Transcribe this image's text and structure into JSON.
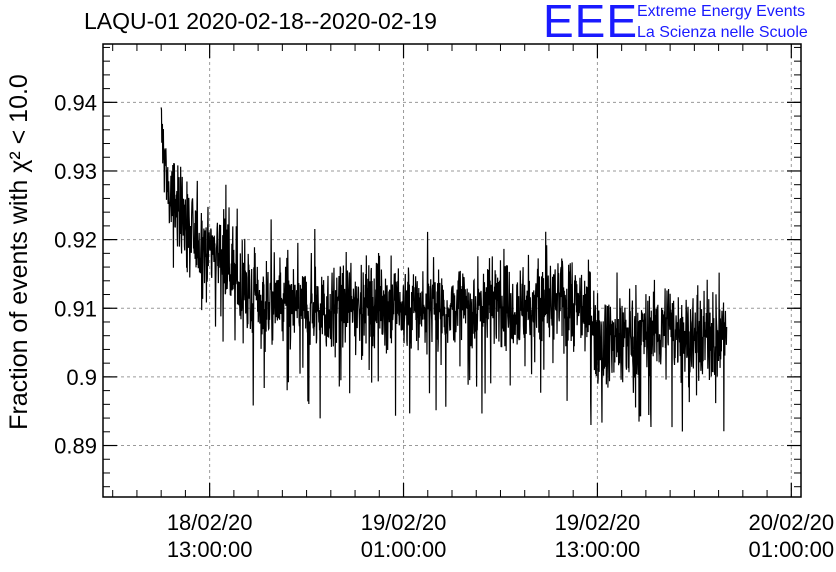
{
  "chart_data": {
    "type": "line",
    "title": "LAQU-01 2020-02-18--2020-02-19",
    "ylabel": "Fraction of events with χ² < 10.0",
    "xlabel": "",
    "ylim": [
      0.8825,
      0.9485
    ],
    "y_ticks": [
      "0.89",
      "0.9",
      "0.91",
      "0.92",
      "0.93",
      "0.94"
    ],
    "x_ticks": [
      {
        "date": "18/02/20",
        "time": "13:00:00"
      },
      {
        "date": "19/02/20",
        "time": "01:00:00"
      },
      {
        "date": "19/02/20",
        "time": "13:00:00"
      },
      {
        "date": "20/02/20",
        "time": "01:00:00"
      }
    ],
    "xlim_hours_from_first_tick": [
      -6.6,
      36.6
    ],
    "grid": true,
    "line_color": "#000000",
    "series": [
      {
        "x_hours": [
          -3,
          -2.5,
          -2,
          -1,
          0,
          1,
          2,
          3,
          4,
          6,
          8,
          10,
          12,
          14,
          16,
          18,
          20,
          22,
          23.5,
          24,
          25,
          26,
          28,
          30,
          31,
          32
        ],
        "values": [
          0.936,
          0.926,
          0.925,
          0.92,
          0.919,
          0.918,
          0.912,
          0.911,
          0.911,
          0.91,
          0.91,
          0.911,
          0.91,
          0.91,
          0.91,
          0.911,
          0.91,
          0.911,
          0.91,
          0.906,
          0.905,
          0.906,
          0.907,
          0.906,
          0.906,
          0.906
        ]
      }
    ]
  },
  "logo": {
    "mark": "EEE",
    "line1": "Extreme Energy Events",
    "line2": "La Scienza nelle Scuole",
    "color": "#1a1aff"
  }
}
